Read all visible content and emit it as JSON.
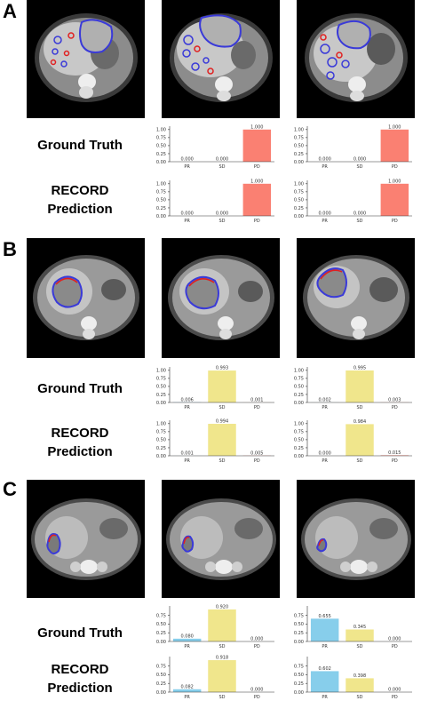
{
  "panels": [
    {
      "letter": "A",
      "gt_label": "Ground Truth",
      "pred_label_1": "RECORD",
      "pred_label_2": "Prediction"
    },
    {
      "letter": "B",
      "gt_label": "Ground Truth",
      "pred_label_1": "RECORD",
      "pred_label_2": "Prediction"
    },
    {
      "letter": "C",
      "gt_label": "Ground Truth",
      "pred_label_1": "RECORD",
      "pred_label_2": "Prediction"
    }
  ],
  "colors": {
    "PR": "#87ceeb",
    "SD": "#f0e68c",
    "PD": "#fa8072",
    "axis": "#333333",
    "ct_background": "#000000",
    "outline_blue": "#3a3ad8",
    "outline_red": "#e02020"
  },
  "chart_data": [
    {
      "type": "bar",
      "panel": "A",
      "row": "Ground Truth",
      "column": 1,
      "categories": [
        "PR",
        "SD",
        "PD"
      ],
      "values": [
        0.0,
        0.0,
        1.0
      ],
      "value_labels": [
        "0.000",
        "0.000",
        "1.000"
      ],
      "yticks": [
        "0.00",
        "0.25",
        "0.50",
        "0.75",
        "1.00"
      ],
      "ylim": [
        0,
        1.05
      ]
    },
    {
      "type": "bar",
      "panel": "A",
      "row": "Ground Truth",
      "column": 2,
      "categories": [
        "PR",
        "SD",
        "PD"
      ],
      "values": [
        0.0,
        0.0,
        1.0
      ],
      "value_labels": [
        "0.000",
        "0.000",
        "1.000"
      ],
      "yticks": [
        "0.00",
        "0.25",
        "0.50",
        "0.75",
        "1.00"
      ],
      "ylim": [
        0,
        1.05
      ]
    },
    {
      "type": "bar",
      "panel": "A",
      "row": "RECORD Prediction",
      "column": 1,
      "categories": [
        "PR",
        "SD",
        "PD"
      ],
      "values": [
        0.0,
        0.0,
        1.0
      ],
      "value_labels": [
        "0.000",
        "0.000",
        "1.000"
      ],
      "yticks": [
        "0.00",
        "0.25",
        "0.50",
        "0.75",
        "1.00"
      ],
      "ylim": [
        0,
        1.05
      ]
    },
    {
      "type": "bar",
      "panel": "A",
      "row": "RECORD Prediction",
      "column": 2,
      "categories": [
        "PR",
        "SD",
        "PD"
      ],
      "values": [
        0.0,
        0.0,
        1.0
      ],
      "value_labels": [
        "0.000",
        "0.000",
        "1.000"
      ],
      "yticks": [
        "0.00",
        "0.25",
        "0.50",
        "0.75",
        "1.00"
      ],
      "ylim": [
        0,
        1.05
      ]
    },
    {
      "type": "bar",
      "panel": "B",
      "row": "Ground Truth",
      "column": 1,
      "categories": [
        "PR",
        "SD",
        "PD"
      ],
      "values": [
        0.006,
        0.993,
        0.001
      ],
      "value_labels": [
        "0.006",
        "0.993",
        "0.001"
      ],
      "yticks": [
        "0.00",
        "0.25",
        "0.50",
        "0.75",
        "1.00"
      ],
      "ylim": [
        0,
        1.05
      ]
    },
    {
      "type": "bar",
      "panel": "B",
      "row": "Ground Truth",
      "column": 2,
      "categories": [
        "PR",
        "SD",
        "PD"
      ],
      "values": [
        0.002,
        0.995,
        0.003
      ],
      "value_labels": [
        "0.002",
        "0.995",
        "0.003"
      ],
      "yticks": [
        "0.00",
        "0.25",
        "0.50",
        "0.75",
        "1.00"
      ],
      "ylim": [
        0,
        1.05
      ]
    },
    {
      "type": "bar",
      "panel": "B",
      "row": "RECORD Prediction",
      "column": 1,
      "categories": [
        "PR",
        "SD",
        "PD"
      ],
      "values": [
        0.001,
        0.994,
        0.005
      ],
      "value_labels": [
        "0.001",
        "0.994",
        "0.005"
      ],
      "yticks": [
        "0.00",
        "0.25",
        "0.50",
        "0.75",
        "1.00"
      ],
      "ylim": [
        0,
        1.05
      ]
    },
    {
      "type": "bar",
      "panel": "B",
      "row": "RECORD Prediction",
      "column": 2,
      "categories": [
        "PR",
        "SD",
        "PD"
      ],
      "values": [
        0.0,
        0.984,
        0.015
      ],
      "value_labels": [
        "0.000",
        "0.984",
        "0.015"
      ],
      "yticks": [
        "0.00",
        "0.25",
        "0.50",
        "0.75",
        "1.00"
      ],
      "ylim": [
        0,
        1.05
      ]
    },
    {
      "type": "bar",
      "panel": "C",
      "row": "Ground Truth",
      "column": 1,
      "categories": [
        "PR",
        "SD",
        "PD"
      ],
      "values": [
        0.08,
        0.92,
        0.0
      ],
      "value_labels": [
        "0.080",
        "0.920",
        "0.000"
      ],
      "yticks": [
        "0.00",
        "0.25",
        "0.50",
        "0.75"
      ],
      "ylim": [
        0,
        0.97
      ]
    },
    {
      "type": "bar",
      "panel": "C",
      "row": "Ground Truth",
      "column": 2,
      "categories": [
        "PR",
        "SD",
        "PD"
      ],
      "values": [
        0.655,
        0.345,
        0.0
      ],
      "value_labels": [
        "0.655",
        "0.345",
        "0.000"
      ],
      "yticks": [
        "0.00",
        "0.25",
        "0.50",
        "0.75"
      ],
      "ylim": [
        0,
        0.97
      ]
    },
    {
      "type": "bar",
      "panel": "C",
      "row": "RECORD Prediction",
      "column": 1,
      "categories": [
        "PR",
        "SD",
        "PD"
      ],
      "values": [
        0.082,
        0.918,
        0.0
      ],
      "value_labels": [
        "0.082",
        "0.918",
        "0.000"
      ],
      "yticks": [
        "0.00",
        "0.25",
        "0.50",
        "0.75"
      ],
      "ylim": [
        0,
        0.97
      ]
    },
    {
      "type": "bar",
      "panel": "C",
      "row": "RECORD Prediction",
      "column": 2,
      "categories": [
        "PR",
        "SD",
        "PD"
      ],
      "values": [
        0.602,
        0.398,
        0.0
      ],
      "value_labels": [
        "0.602",
        "0.398",
        "0.000"
      ],
      "yticks": [
        "0.00",
        "0.25",
        "0.50",
        "0.75"
      ],
      "ylim": [
        0,
        0.97
      ]
    }
  ]
}
